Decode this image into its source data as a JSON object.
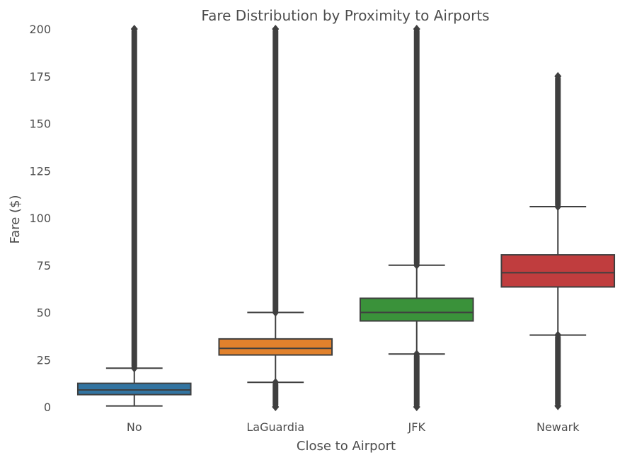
{
  "chart_data": {
    "type": "box",
    "title": "Fare Distribution by Proximity to Airports",
    "xlabel": "Close to Airport",
    "ylabel": "Fare ($)",
    "ylim": [
      0,
      200
    ],
    "yticks": [
      0,
      25,
      50,
      75,
      100,
      125,
      150,
      175,
      200
    ],
    "grid": false,
    "categories": [
      "No",
      "LaGuardia",
      "JFK",
      "Newark"
    ],
    "boxes": [
      {
        "category": "No",
        "color": "#3274a1",
        "whisker_low": 0.5,
        "q1": 6.5,
        "median": 9,
        "q3": 12.5,
        "whisker_high": 20.5,
        "outliers_high": [
          20.5,
          200
        ],
        "outliers_low": []
      },
      {
        "category": "LaGuardia",
        "color": "#e1812c",
        "whisker_low": 13,
        "q1": 27.5,
        "median": 31,
        "q3": 36,
        "whisker_high": 50,
        "outliers_high": [
          50,
          200
        ],
        "outliers_low": [
          0,
          13
        ]
      },
      {
        "category": "JFK",
        "color": "#3a923a",
        "whisker_low": 28,
        "q1": 45.5,
        "median": 50,
        "q3": 57.5,
        "whisker_high": 75,
        "outliers_high": [
          75,
          200
        ],
        "outliers_low": [
          0,
          28
        ]
      },
      {
        "category": "Newark",
        "color": "#c03d3e",
        "whisker_low": 38,
        "q1": 63.5,
        "median": 71,
        "q3": 80.5,
        "whisker_high": 106,
        "outliers_high": [
          106,
          175
        ],
        "outliers_low": [
          0.5,
          38
        ]
      }
    ]
  }
}
